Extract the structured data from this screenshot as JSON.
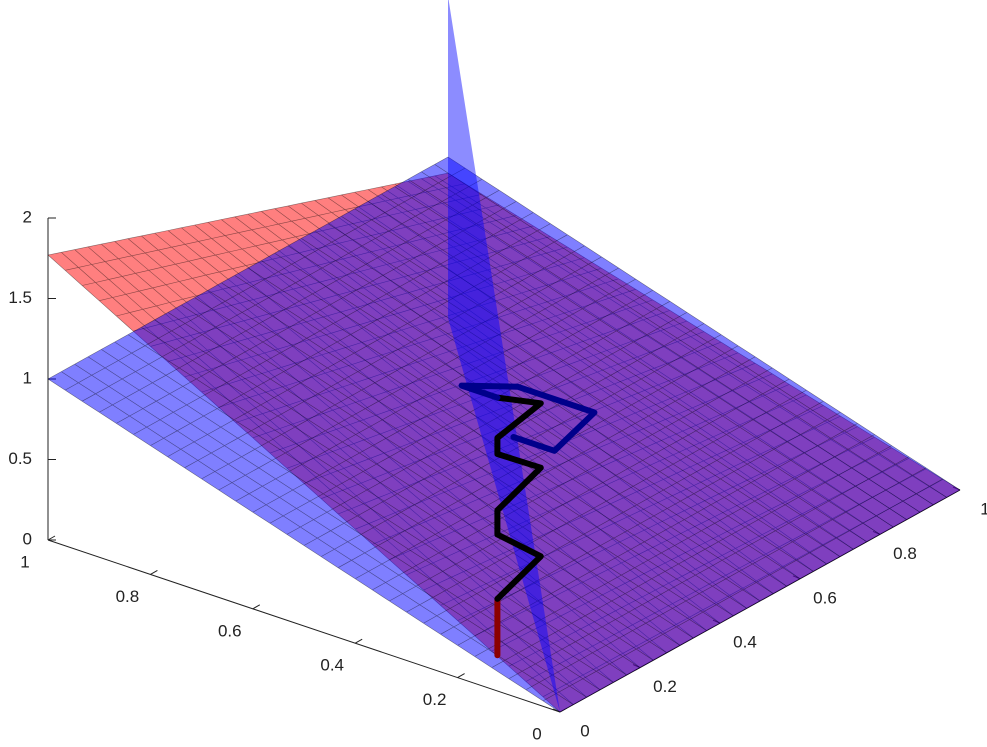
{
  "chart_data": {
    "type": "surface3d",
    "xlim": [
      0,
      1
    ],
    "ylim": [
      0,
      1
    ],
    "zlim": [
      0,
      2
    ],
    "xticks": [
      0,
      0.2,
      0.4,
      0.6,
      0.8,
      1
    ],
    "yticks": [
      0,
      0.2,
      0.4,
      0.6,
      0.8,
      1
    ],
    "zticks": [
      0,
      0.5,
      1,
      1.5,
      2
    ],
    "surfaces": [
      {
        "color": "#ff0000",
        "z": [
          0,
          0,
          1.77,
          0.9
        ]
      },
      {
        "color": "#0000ff",
        "z": [
          0,
          0,
          1,
          1
        ]
      }
    ],
    "planes": [
      {
        "color": "#0000ff",
        "x": [
          0,
          1,
          1
        ],
        "y": [
          0,
          1,
          1
        ],
        "z": [
          0,
          2,
          0
        ]
      }
    ],
    "lines": [
      {
        "color": "#8b0000",
        "x": [
          0.13,
          0.13
        ],
        "y": [
          0.01,
          0.01
        ],
        "z": [
          0.2,
          0.55
        ]
      },
      {
        "color": "#000000",
        "x": [
          0.13,
          0.1,
          0.13,
          0.13,
          0.1,
          0.13,
          0.13,
          0.1,
          0.13
        ],
        "y": [
          0.01,
          0.08,
          0.01,
          0.01,
          0.08,
          0.01,
          0.01,
          0.08,
          0.01
        ],
        "z": [
          0.55,
          0.75,
          0.95,
          1.1,
          1.3,
          1.45,
          1.55,
          1.7,
          1.8
        ]
      },
      {
        "color": "#00008b",
        "x": [
          0.13,
          0.2,
          0.2,
          0.05,
          0.05,
          0.13
        ],
        "y": [
          0.01,
          0.01,
          0.15,
          0.15,
          0.05,
          0.05
        ],
        "z": [
          1.8,
          1.8,
          1.6,
          1.6,
          1.5,
          1.5
        ]
      }
    ]
  }
}
